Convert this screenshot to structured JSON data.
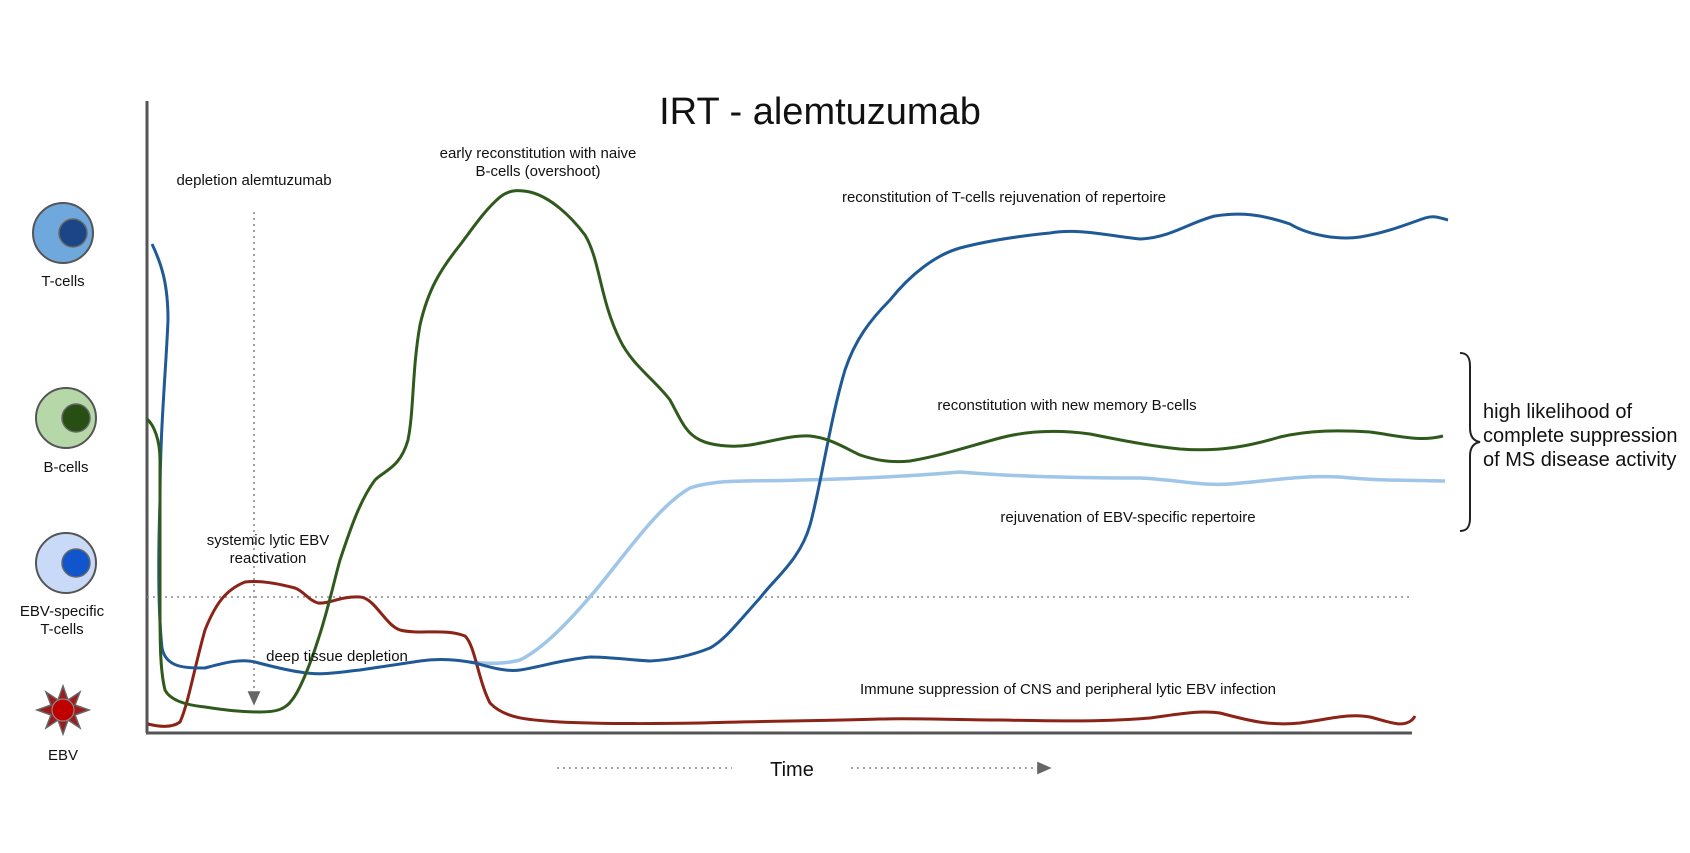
{
  "title": "IRT - alemtuzumab",
  "x_axis_label": "Time",
  "legend": [
    {
      "name": "T-cells",
      "outer": "#6fa8dc",
      "inner": "#1c4587",
      "shape": "cell"
    },
    {
      "name": "B-cells",
      "outer": "#b6d7a8",
      "inner": "#274e13",
      "shape": "cell"
    },
    {
      "name": "EBV-specific T-cells",
      "outer": "#c9daf8",
      "inner": "#1155cc",
      "shape": "cell"
    },
    {
      "name": "EBV",
      "outer": "#9e1b1b",
      "inner": "#c00000",
      "shape": "virus-icon"
    }
  ],
  "legend_text": {
    "t_cells": "T-cells",
    "b_cells": "B-cells",
    "ebv_t_line1": "EBV-specific",
    "ebv_t_line2": "T-cells",
    "ebv": "EBV"
  },
  "annotations": {
    "depletion": "depletion alemtuzumab",
    "early_recon_line1": "early reconstitution with naive",
    "early_recon_line2": "B-cells (overshoot)",
    "t_recon": "reconstitution of T-cells rejuvenation of repertoire",
    "b_memory": "reconstitution with new memory  B-cells",
    "ebv_rejuv": "rejuvenation of EBV-specific repertoire",
    "lytic_line1": "systemic lytic EBV",
    "lytic_line2": "reactivation",
    "deep_tissue": "deep tissue depletion",
    "immune_supp": "Immune suppression of CNS and peripheral lytic EBV infection",
    "outcome_line1": "high likelihood of",
    "outcome_line2": "complete suppression",
    "outcome_line3": "of MS disease activity"
  },
  "colors": {
    "t_cells": "#1f5a96",
    "b_cells": "#2f5a1c",
    "ebv_t_cells": "#9fc5e8",
    "ebv": "#8b2416",
    "axis": "#555555"
  }
}
